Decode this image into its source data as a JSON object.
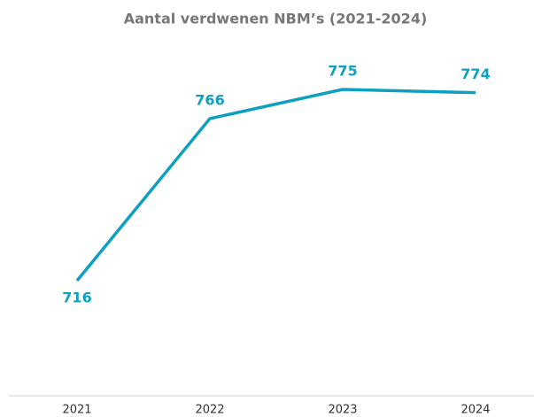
{
  "chart_data": {
    "type": "line",
    "title": "Aantal verdwenen NBM’s (2021-2024)",
    "categories": [
      "2021",
      "2022",
      "2023",
      "2024"
    ],
    "series": [
      {
        "name": "Aantal verdwenen NBM’s",
        "color": "#0e9fc1",
        "values": [
          716,
          766,
          775,
          774
        ]
      }
    ]
  }
}
